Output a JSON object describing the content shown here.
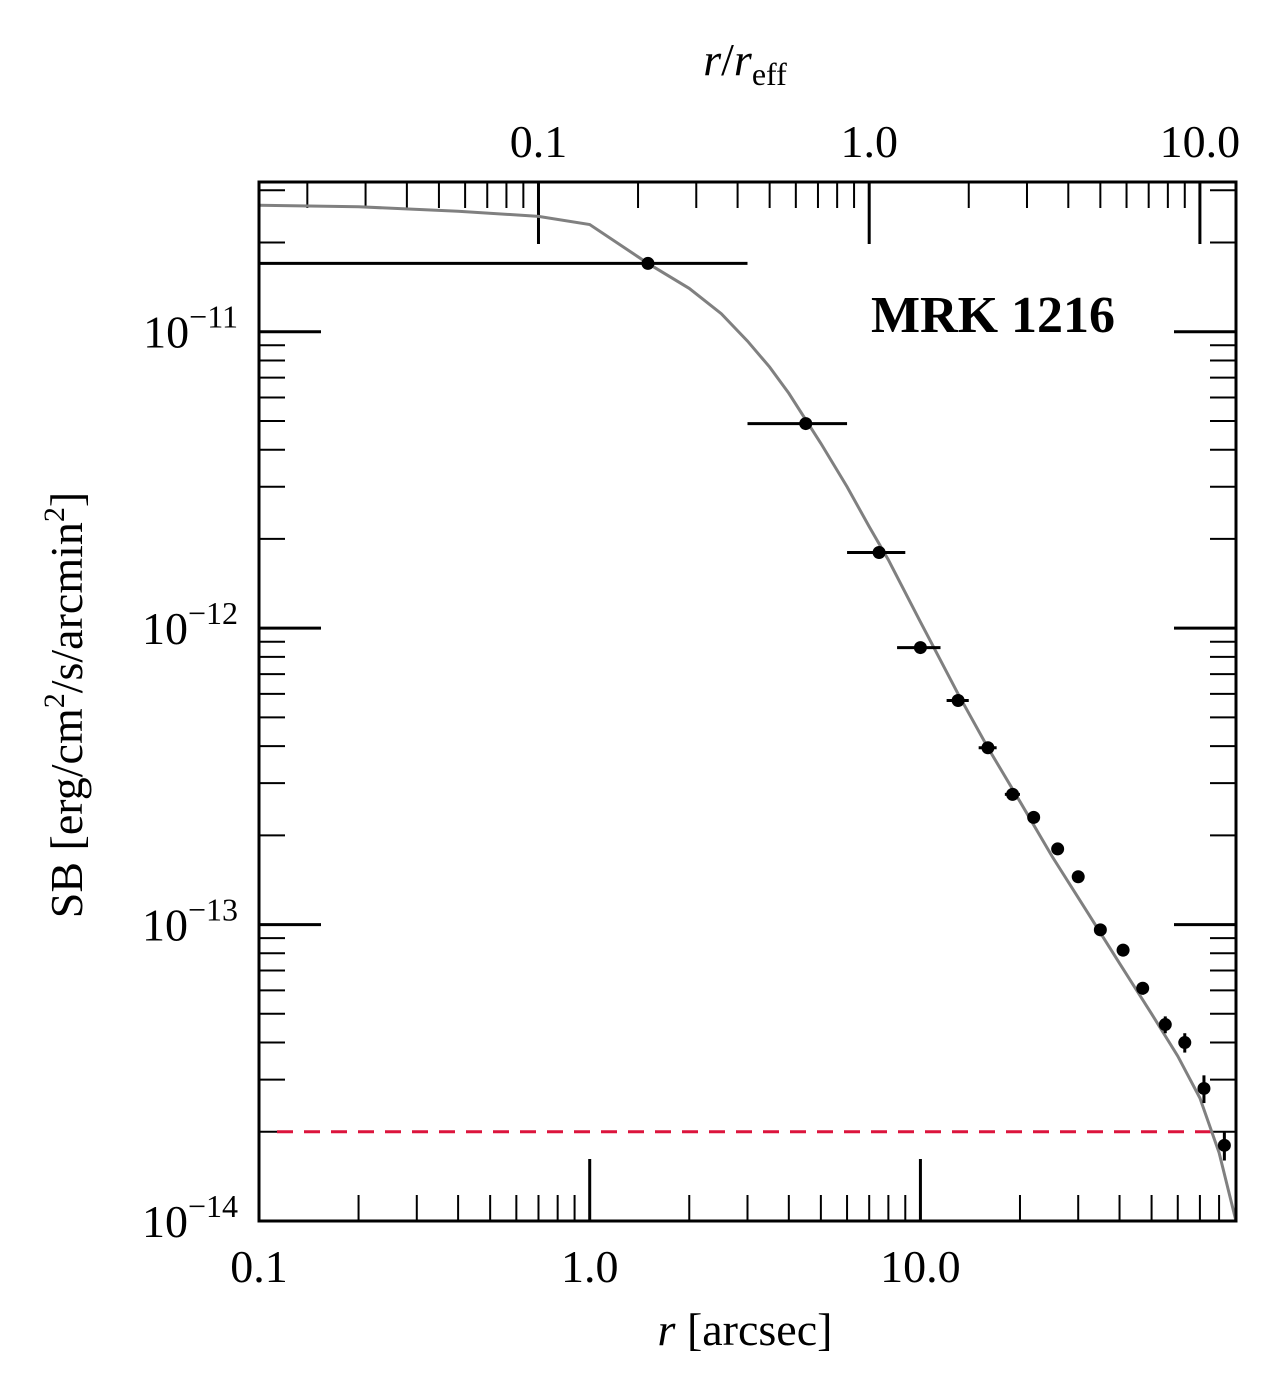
{
  "chart_data": {
    "type": "scatter",
    "title": "MRK 1216",
    "xlabel": {
      "italic": "r",
      "rest": " [arcsec]"
    },
    "ylabel": {
      "parts": [
        "SB [erg/cm",
        "2",
        "/s/arcmin",
        "2",
        "]"
      ]
    },
    "top_xlabel": {
      "main": "r",
      "sep": "/",
      "sym": "r",
      "sub": "eff"
    },
    "x_scale": "log",
    "y_scale": "log",
    "xlim": [
      0.1,
      90
    ],
    "ylim": [
      1e-14,
      3.2e-11
    ],
    "x_ticks": [
      {
        "value": 0.1,
        "label": "0.1"
      },
      {
        "value": 1.0,
        "label": "1.0"
      },
      {
        "value": 10.0,
        "label": "10.0"
      }
    ],
    "y_ticks": [
      {
        "value": 1e-14,
        "base": "10",
        "exp": "−14"
      },
      {
        "value": 1e-13,
        "base": "10",
        "exp": "−13"
      },
      {
        "value": 1e-12,
        "base": "10",
        "exp": "−12"
      },
      {
        "value": 1e-11,
        "base": "10",
        "exp": "−11"
      }
    ],
    "top_axis": {
      "r_eff_arcsec": 7.0,
      "ticks": [
        {
          "value": 0.1,
          "label": "0.1"
        },
        {
          "value": 1.0,
          "label": "1.0"
        },
        {
          "value": 10.0,
          "label": "10.0"
        }
      ]
    },
    "points": [
      {
        "x": 1.5,
        "y": 1.7e-11,
        "xerr_lo": 1.4,
        "xerr_hi": 1.5,
        "yerr": 0
      },
      {
        "x": 4.5,
        "y": 4.9e-12,
        "xerr_lo": 1.5,
        "xerr_hi": 1.5,
        "yerr": 0
      },
      {
        "x": 7.5,
        "y": 1.8e-12,
        "xerr_lo": 1.5,
        "xerr_hi": 1.5,
        "yerr": 0
      },
      {
        "x": 10.0,
        "y": 8.6e-13,
        "xerr_lo": 1.5,
        "xerr_hi": 1.5,
        "yerr": 0
      },
      {
        "x": 13.0,
        "y": 5.7e-13,
        "xerr_lo": 1.0,
        "xerr_hi": 1.0,
        "yerr": 0
      },
      {
        "x": 16.0,
        "y": 3.95e-13,
        "xerr_lo": 1.0,
        "xerr_hi": 1.0,
        "yerr": 0
      },
      {
        "x": 19.0,
        "y": 2.75e-13,
        "xerr_lo": 1.0,
        "xerr_hi": 1.0,
        "yerr": 0
      },
      {
        "x": 22.0,
        "y": 2.3e-13,
        "xerr_lo": 0.5,
        "xerr_hi": 0.5,
        "yerr": 1e-14
      },
      {
        "x": 26.0,
        "y": 1.8e-13,
        "xerr_lo": 0.5,
        "xerr_hi": 0.5,
        "yerr": 8e-15
      },
      {
        "x": 30.0,
        "y": 1.45e-13,
        "xerr_lo": 0.5,
        "xerr_hi": 0.5,
        "yerr": 6e-15
      },
      {
        "x": 35.0,
        "y": 9.6e-14,
        "xerr_lo": 0.5,
        "xerr_hi": 0.5,
        "yerr": 4e-15
      },
      {
        "x": 41.0,
        "y": 8.2e-14,
        "xerr_lo": 0.5,
        "xerr_hi": 0.5,
        "yerr": 4e-15
      },
      {
        "x": 47.0,
        "y": 6.1e-14,
        "xerr_lo": 0.5,
        "xerr_hi": 0.5,
        "yerr": 3e-15
      },
      {
        "x": 55.0,
        "y": 4.6e-14,
        "xerr_lo": 0.5,
        "xerr_hi": 0.5,
        "yerr": 3e-15
      },
      {
        "x": 63.0,
        "y": 4e-14,
        "xerr_lo": 0.5,
        "xerr_hi": 0.5,
        "yerr": 3e-15
      },
      {
        "x": 72.0,
        "y": 2.8e-14,
        "xerr_lo": 0.5,
        "xerr_hi": 0.5,
        "yerr": 3e-15
      },
      {
        "x": 83.0,
        "y": 1.8e-14,
        "xerr_lo": 0.5,
        "xerr_hi": 0.5,
        "yerr": 2e-15
      }
    ],
    "model_curve": [
      {
        "x": 0.1,
        "y": 2.67e-11
      },
      {
        "x": 0.2,
        "y": 2.64e-11
      },
      {
        "x": 0.4,
        "y": 2.55e-11
      },
      {
        "x": 0.7,
        "y": 2.45e-11
      },
      {
        "x": 1.0,
        "y": 2.3e-11
      },
      {
        "x": 1.5,
        "y": 1.7e-11
      },
      {
        "x": 2.0,
        "y": 1.4e-11
      },
      {
        "x": 2.5,
        "y": 1.15e-11
      },
      {
        "x": 3.0,
        "y": 9.3e-12
      },
      {
        "x": 3.5,
        "y": 7.6e-12
      },
      {
        "x": 4.0,
        "y": 6.2e-12
      },
      {
        "x": 5.0,
        "y": 4.2e-12
      },
      {
        "x": 6.0,
        "y": 3e-12
      },
      {
        "x": 7.0,
        "y": 2.2e-12
      },
      {
        "x": 8.0,
        "y": 1.7e-12
      },
      {
        "x": 10.0,
        "y": 1.05e-12
      },
      {
        "x": 13.0,
        "y": 6e-13
      },
      {
        "x": 16.0,
        "y": 3.95e-13
      },
      {
        "x": 20.0,
        "y": 2.6e-13
      },
      {
        "x": 25.0,
        "y": 1.7e-13
      },
      {
        "x": 32.0,
        "y": 1.1e-13
      },
      {
        "x": 40.0,
        "y": 7.4e-14
      },
      {
        "x": 50.0,
        "y": 5e-14
      },
      {
        "x": 60.0,
        "y": 3.6e-14
      },
      {
        "x": 70.0,
        "y": 2.6e-14
      },
      {
        "x": 80.0,
        "y": 1.7e-14
      },
      {
        "x": 90.0,
        "y": 1e-14
      }
    ],
    "background_level": {
      "y": 2e-14,
      "color": "#dc143c",
      "style": "dashed"
    },
    "colors": {
      "points": "#000000",
      "model": "#808080",
      "frame": "#000000"
    },
    "grid": false
  }
}
